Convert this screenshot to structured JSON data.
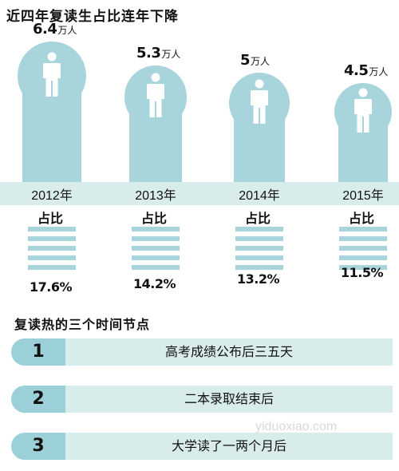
{
  "title": "近四年复读生占比连年下降",
  "chart_data": {
    "type": "bar",
    "categories": [
      "2012年",
      "2013年",
      "2014年",
      "2015年"
    ],
    "series": [
      {
        "values": [
          6.4,
          5.3,
          5,
          4.5
        ]
      },
      {
        "values": [
          17.6,
          14.2,
          13.2,
          11.5
        ]
      }
    ],
    "value_labels": [
      "6.4",
      "5.3",
      "5",
      "4.5"
    ],
    "unit": "万人",
    "ratio_label": "占比",
    "pct_labels": [
      "17.6%",
      "14.2%",
      "13.2%",
      "11.5%"
    ]
  },
  "nodes_title": "复读热的三个时间节点",
  "nodes": [
    {
      "num": "1",
      "text": "高考成绩公布后三五天"
    },
    {
      "num": "2",
      "text": "二本录取结束后"
    },
    {
      "num": "3",
      "text": "大学读了一两个月后"
    }
  ],
  "watermark": "yiduoxiao.com",
  "colors": {
    "accent": "#a8d4dc",
    "band": "#d9ecec",
    "box": "#9cd0d8"
  }
}
